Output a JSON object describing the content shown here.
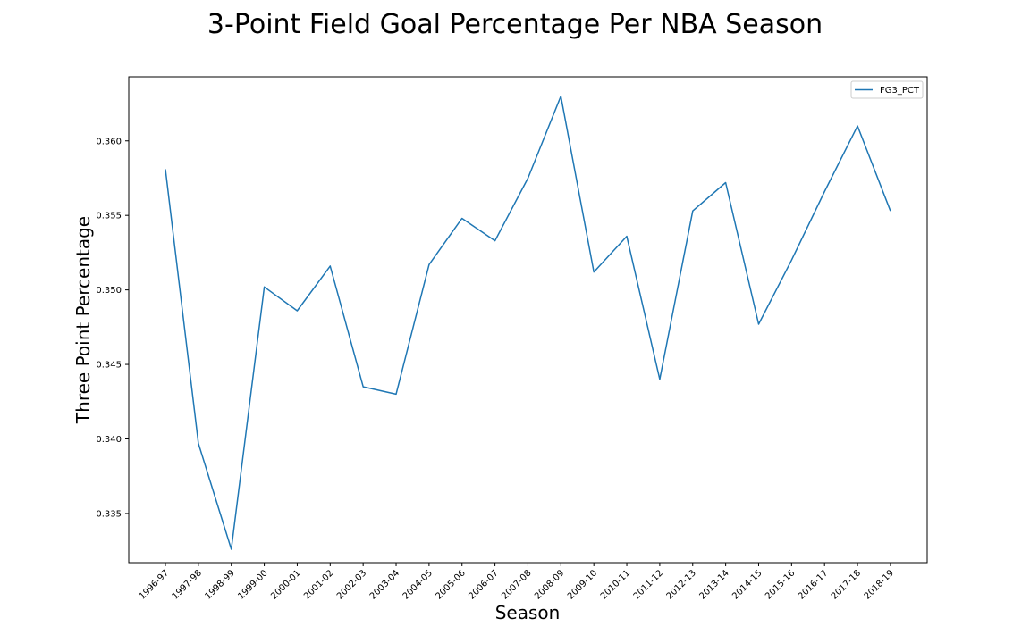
{
  "chart_data": {
    "type": "line",
    "title": "3-Point Field Goal Percentage Per NBA Season",
    "xlabel": "Season",
    "ylabel": "Three Point Percentage",
    "categories": [
      "1996-97",
      "1997-98",
      "1998-99",
      "1999-00",
      "2000-01",
      "2001-02",
      "2002-03",
      "2003-04",
      "2004-05",
      "2005-06",
      "2006-07",
      "2007-08",
      "2008-09",
      "2009-10",
      "2010-11",
      "2011-12",
      "2012-13",
      "2013-14",
      "2014-15",
      "2015-16",
      "2016-17",
      "2017-18",
      "2018-19"
    ],
    "series": [
      {
        "name": "FG3_PCT",
        "color": "#1f77b4",
        "values": [
          0.3581,
          0.3397,
          0.3326,
          0.3502,
          0.3486,
          0.3516,
          0.3435,
          0.343,
          0.3517,
          0.3548,
          0.3533,
          0.3575,
          0.363,
          0.3512,
          0.3536,
          0.344,
          0.3553,
          0.3572,
          0.3477,
          0.352,
          0.3566,
          0.361,
          0.3553
        ]
      }
    ],
    "yticks": [
      0.335,
      0.34,
      0.345,
      0.35,
      0.355,
      0.36
    ],
    "ytick_labels": [
      "0.335",
      "0.340",
      "0.345",
      "0.350",
      "0.355",
      "0.360"
    ],
    "ylim": [
      0.3317,
      0.3643
    ],
    "legend_position": "top-right",
    "grid": false
  }
}
